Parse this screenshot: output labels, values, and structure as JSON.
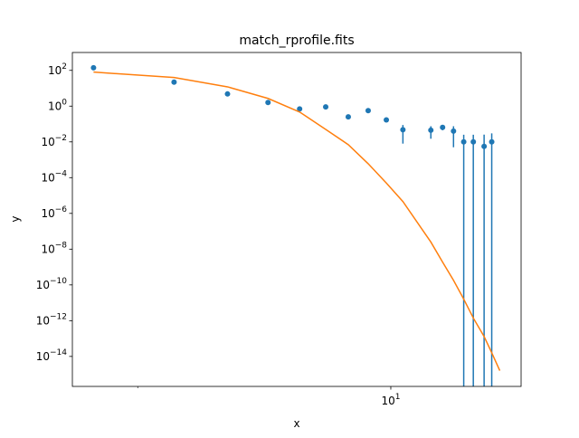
{
  "chart_data": {
    "type": "errorbar",
    "title": "match_rprofile.fits",
    "x_label": "x",
    "y_label": "y",
    "xscale": "log",
    "yscale": "log",
    "xlim": [
      1.32,
      22.9
    ],
    "ylim": [
      2.1e-16,
      1000
    ],
    "xticks": [
      {
        "value": 10,
        "label": "10^1"
      }
    ],
    "xminorticks": [
      2
    ],
    "yticks": [
      {
        "value": 1e-14,
        "label": "10^−14"
      },
      {
        "value": 1e-12,
        "label": "10^−12"
      },
      {
        "value": 1e-10,
        "label": "10^−10"
      },
      {
        "value": 1e-08,
        "label": "10^−8"
      },
      {
        "value": 1e-06,
        "label": "10^−6"
      },
      {
        "value": 0.0001,
        "label": "10^−4"
      },
      {
        "value": 0.01,
        "label": "10^−2"
      },
      {
        "value": 1,
        "label": "10^0"
      },
      {
        "value": 100,
        "label": "10^2"
      }
    ],
    "series": [
      {
        "type": "errorbar",
        "color": "#1f77b4",
        "x": [
          1.51,
          2.52,
          3.54,
          4.58,
          5.6,
          6.61,
          7.63,
          8.66,
          9.72,
          10.8,
          12.9,
          13.9,
          14.9,
          15.9,
          16.9,
          18.1,
          19.0
        ],
        "values": [
          140,
          22,
          4.8,
          1.6,
          0.7,
          0.9,
          0.25,
          0.56,
          0.17,
          0.048,
          0.045,
          0.065,
          0.04,
          0.01,
          0.01,
          0.0056,
          0.01
        ],
        "errors": [
          5,
          1,
          0.3,
          0.1,
          0.05,
          0.06,
          0.03,
          0.04,
          0.03,
          0.04,
          0.03,
          0.02,
          0.035,
          0.015,
          0.015,
          0.02,
          0.02
        ]
      },
      {
        "type": "line",
        "color": "#ff7f0e",
        "x": [
          1.51,
          2.52,
          3.54,
          4.58,
          5.6,
          6.61,
          7.63,
          8.66,
          9.72,
          10.8,
          12.9,
          13.9,
          14.9,
          15.9,
          16.9,
          18.1,
          19.0,
          20.0
        ],
        "values": [
          80,
          40,
          12,
          2.7,
          0.47,
          0.05,
          0.007,
          0.0006,
          5e-05,
          4.6e-06,
          2.5e-08,
          1.9e-09,
          1.8e-10,
          1.6e-11,
          1.4e-12,
          1.3e-13,
          1.6e-14,
          1.6e-15
        ]
      }
    ]
  }
}
